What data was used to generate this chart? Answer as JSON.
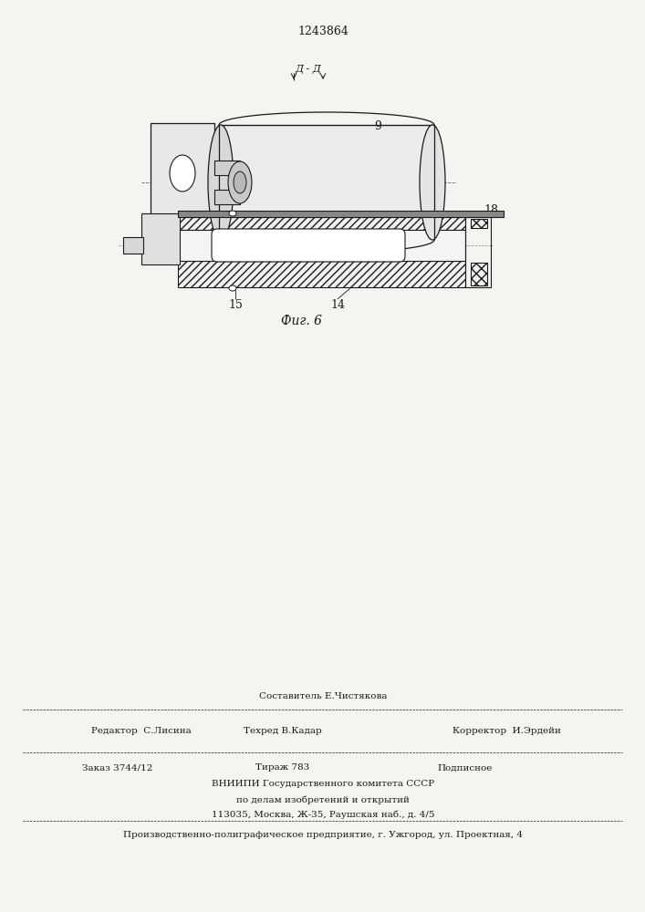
{
  "patent_number": "1243864",
  "fig_label": "Фиг. 6",
  "section_label": "Д - Д",
  "bg_color": "#f5f4f0",
  "line_color": "#1a1a1a",
  "bottom_text": {
    "line1_center": "Составитель Е.Чистякова",
    "line2_left": "Редактор  С.Лисина",
    "line2_center": "Техред В.Кадар",
    "line2_right": "Корректор  И.Эрдейи",
    "line3_left": "Заказ 3744/12",
    "line3_center": "Тираж 783",
    "line3_right": "Подписное",
    "line4": "ВНИИПИ Государственного комитета СССР",
    "line5": "по делам изобретений и открытий",
    "line6": "113035, Москва, Ж-35, Раушская наб., д. 4/5",
    "line7": "Производственно-полиграфическое предприятие, г. Ужгород, ул. Проектная, 4"
  }
}
